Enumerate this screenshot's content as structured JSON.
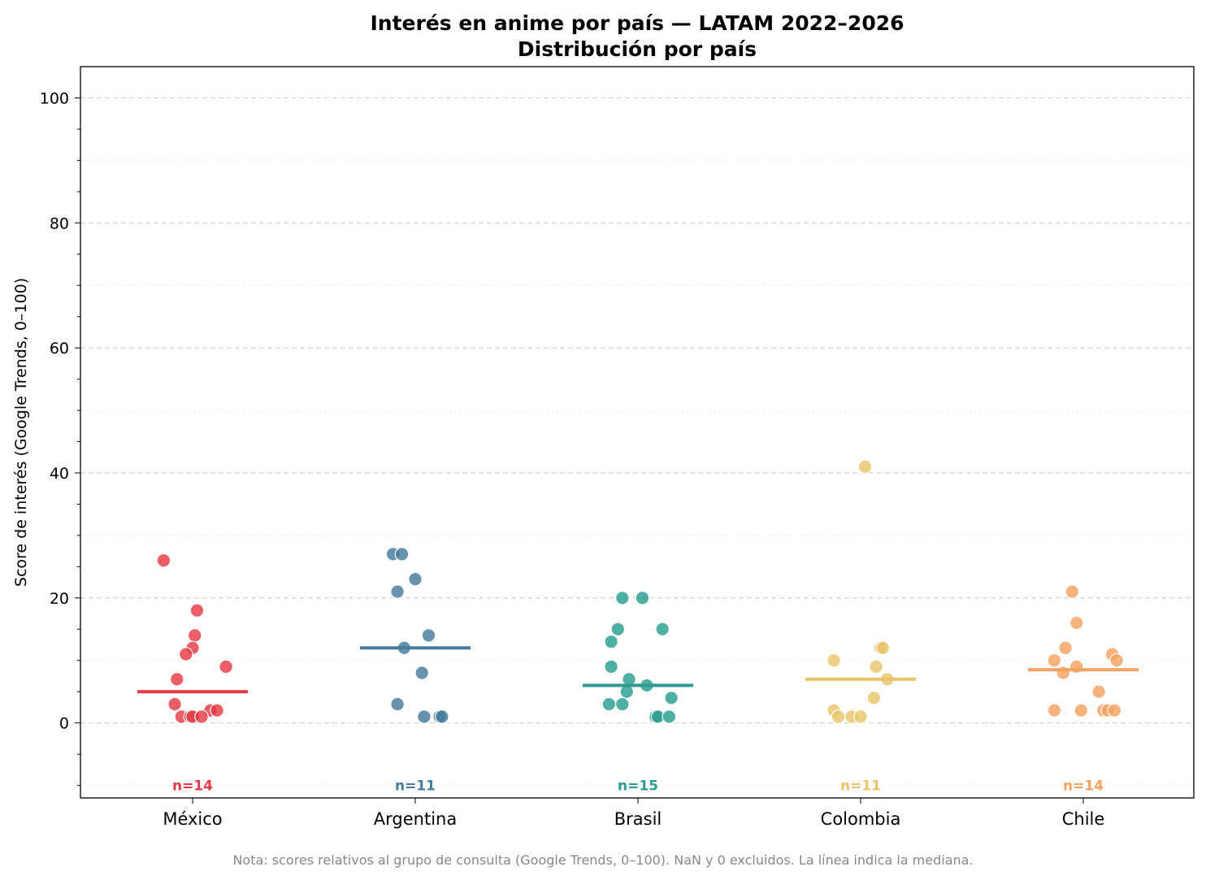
{
  "chart_data": {
    "type": "scatter",
    "title": "Interés en anime por país — LATAM 2022–2026",
    "subtitle": "Distribución por país",
    "xlabel": "",
    "ylabel": "Score de interés (Google Trends, 0–100)",
    "ylim": [
      -12,
      105
    ],
    "yticks": [
      0,
      20,
      40,
      60,
      80,
      100
    ],
    "grid": true,
    "legend": "none",
    "categories": [
      "México",
      "Argentina",
      "Brasil",
      "Colombia",
      "Chile"
    ],
    "series": [
      {
        "category": "México",
        "color": "#e63946",
        "median": 5,
        "n_label": "n=14",
        "points": [
          {
            "dx": -0.13,
            "y": 26
          },
          {
            "dx": 0.02,
            "y": 18
          },
          {
            "dx": 0.01,
            "y": 14
          },
          {
            "dx": 0.0,
            "y": 12
          },
          {
            "dx": -0.03,
            "y": 11
          },
          {
            "dx": 0.15,
            "y": 9
          },
          {
            "dx": -0.07,
            "y": 7
          },
          {
            "dx": -0.08,
            "y": 3
          },
          {
            "dx": 0.08,
            "y": 2
          },
          {
            "dx": 0.11,
            "y": 2
          },
          {
            "dx": -0.05,
            "y": 1
          },
          {
            "dx": -0.01,
            "y": 1
          },
          {
            "dx": 0.0,
            "y": 1
          },
          {
            "dx": 0.04,
            "y": 1
          }
        ]
      },
      {
        "category": "Argentina",
        "color": "#457b9d",
        "median": 12,
        "n_label": "n=11",
        "points": [
          {
            "dx": -0.1,
            "y": 27
          },
          {
            "dx": -0.06,
            "y": 27
          },
          {
            "dx": 0.0,
            "y": 23
          },
          {
            "dx": -0.08,
            "y": 21
          },
          {
            "dx": 0.06,
            "y": 14
          },
          {
            "dx": -0.05,
            "y": 12
          },
          {
            "dx": 0.03,
            "y": 8
          },
          {
            "dx": -0.08,
            "y": 3
          },
          {
            "dx": 0.04,
            "y": 1
          },
          {
            "dx": 0.11,
            "y": 1
          },
          {
            "dx": 0.12,
            "y": 1
          }
        ]
      },
      {
        "category": "Brasil",
        "color": "#2a9d8f",
        "median": 6,
        "n_label": "n=15",
        "points": [
          {
            "dx": -0.07,
            "y": 20
          },
          {
            "dx": 0.02,
            "y": 20
          },
          {
            "dx": -0.09,
            "y": 15
          },
          {
            "dx": 0.11,
            "y": 15
          },
          {
            "dx": -0.12,
            "y": 13
          },
          {
            "dx": -0.12,
            "y": 9
          },
          {
            "dx": -0.04,
            "y": 7
          },
          {
            "dx": 0.04,
            "y": 6
          },
          {
            "dx": -0.05,
            "y": 5
          },
          {
            "dx": 0.15,
            "y": 4
          },
          {
            "dx": -0.13,
            "y": 3
          },
          {
            "dx": -0.07,
            "y": 3
          },
          {
            "dx": 0.08,
            "y": 1
          },
          {
            "dx": 0.09,
            "y": 1
          },
          {
            "dx": 0.14,
            "y": 1
          }
        ]
      },
      {
        "category": "Colombia",
        "color": "#e9c46a",
        "median": 7,
        "n_label": "n=11",
        "points": [
          {
            "dx": 0.02,
            "y": 41
          },
          {
            "dx": 0.09,
            "y": 12
          },
          {
            "dx": 0.1,
            "y": 12
          },
          {
            "dx": -0.12,
            "y": 10
          },
          {
            "dx": 0.07,
            "y": 9
          },
          {
            "dx": 0.12,
            "y": 7
          },
          {
            "dx": 0.06,
            "y": 4
          },
          {
            "dx": -0.12,
            "y": 2
          },
          {
            "dx": -0.1,
            "y": 1
          },
          {
            "dx": -0.04,
            "y": 1
          },
          {
            "dx": 0.0,
            "y": 1
          }
        ]
      },
      {
        "category": "Chile",
        "color": "#f4a261",
        "median": 8.5,
        "n_label": "n=14",
        "points": [
          {
            "dx": -0.05,
            "y": 21
          },
          {
            "dx": -0.03,
            "y": 16
          },
          {
            "dx": -0.08,
            "y": 12
          },
          {
            "dx": 0.13,
            "y": 11
          },
          {
            "dx": -0.13,
            "y": 10
          },
          {
            "dx": 0.15,
            "y": 10
          },
          {
            "dx": -0.03,
            "y": 9
          },
          {
            "dx": -0.09,
            "y": 8
          },
          {
            "dx": 0.07,
            "y": 5
          },
          {
            "dx": -0.13,
            "y": 2
          },
          {
            "dx": -0.01,
            "y": 2
          },
          {
            "dx": 0.09,
            "y": 2
          },
          {
            "dx": 0.11,
            "y": 2
          },
          {
            "dx": 0.14,
            "y": 2
          }
        ]
      }
    ],
    "note": "Nota: scores relativos al grupo de consulta (Google Trends, 0–100). NaN y 0 excluidos. La línea indica la mediana."
  }
}
